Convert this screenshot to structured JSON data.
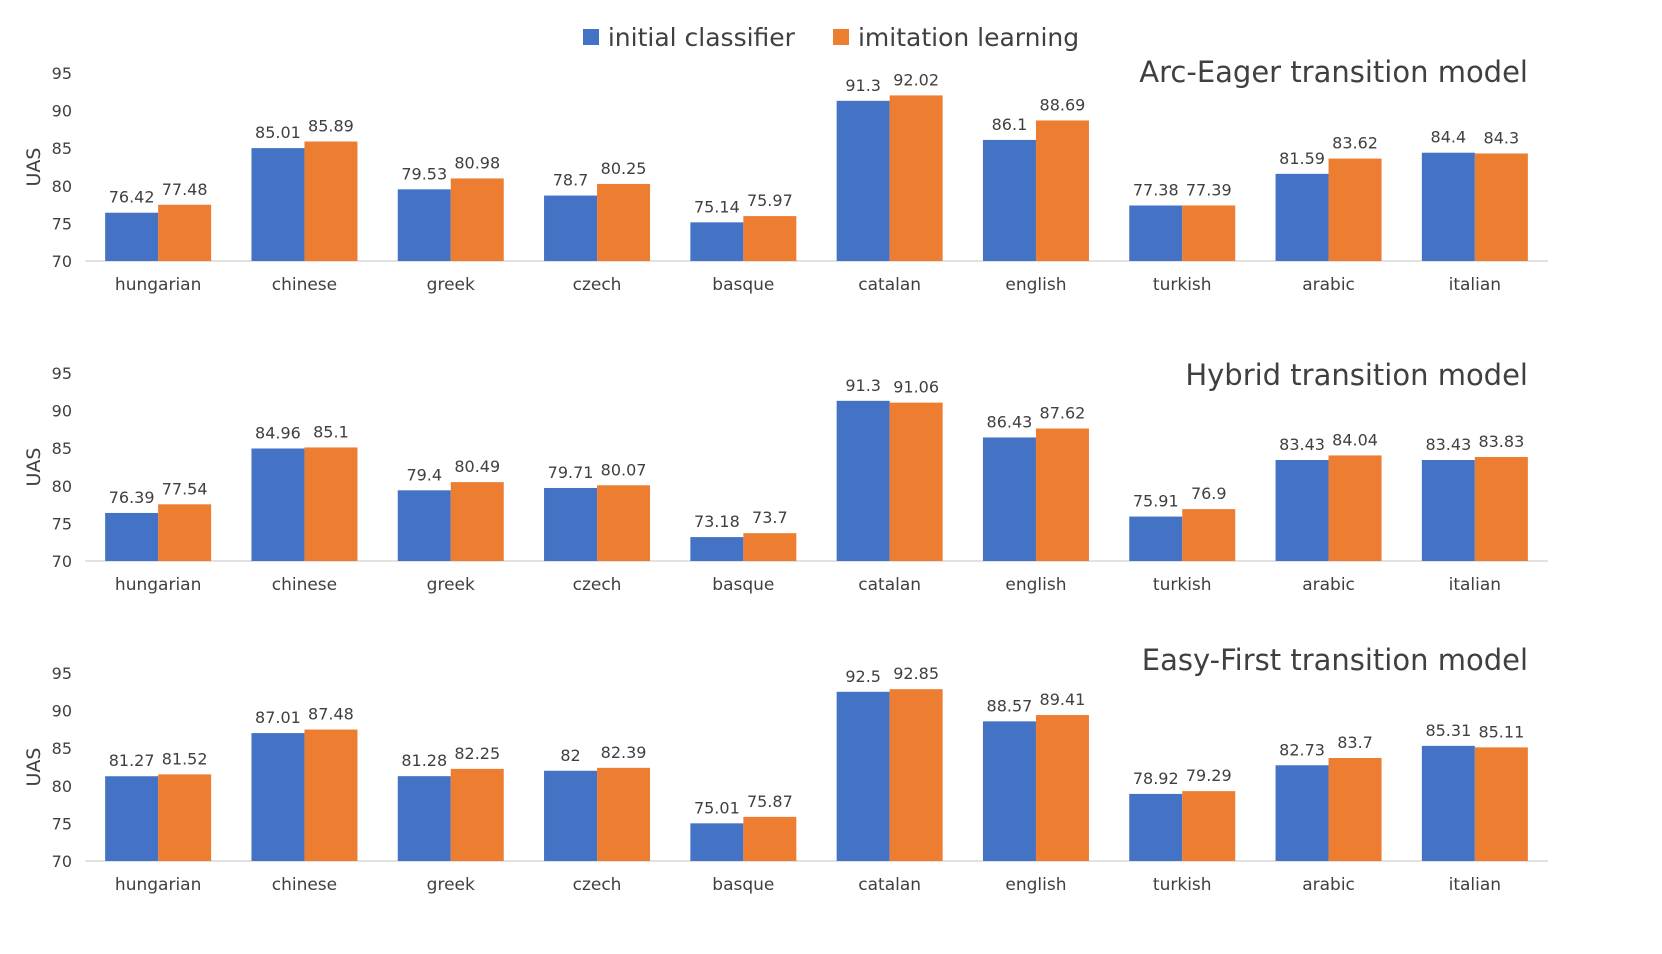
{
  "legend": [
    {
      "label": "initial classifier",
      "color": "#4472C4"
    },
    {
      "label": "imitation learning",
      "color": "#ED7D31"
    }
  ],
  "chart_data": [
    {
      "type": "bar",
      "title": "Arc-Eager transition model",
      "ylabel": "UAS",
      "ylim": [
        70,
        95
      ],
      "yticks": [
        "70",
        "75",
        "80",
        "85",
        "90",
        "95"
      ],
      "categories": [
        "hungarian",
        "chinese",
        "greek",
        "czech",
        "basque",
        "catalan",
        "english",
        "turkish",
        "arabic",
        "italian"
      ],
      "series": [
        {
          "name": "initial classifier",
          "values": [
            76.42,
            85.01,
            79.53,
            78.7,
            75.14,
            91.3,
            86.1,
            77.38,
            81.59,
            84.4
          ],
          "labels": [
            "76.42",
            "85.01",
            "79.53",
            "78.7",
            "75.14",
            "91.3",
            "86.1",
            "77.38",
            "81.59",
            "84.4"
          ]
        },
        {
          "name": "imitation learning",
          "values": [
            77.48,
            85.89,
            80.98,
            80.25,
            75.97,
            92.02,
            88.69,
            77.39,
            83.62,
            84.3
          ],
          "labels": [
            "77.48",
            "85.89",
            "80.98",
            "80.25",
            "75.97",
            "92.02",
            "88.69",
            "77.39",
            "83.62",
            "84.3"
          ]
        }
      ]
    },
    {
      "type": "bar",
      "title": "Hybrid transition model",
      "ylabel": "UAS",
      "ylim": [
        70,
        95
      ],
      "yticks": [
        "70",
        "75",
        "80",
        "85",
        "90",
        "95"
      ],
      "categories": [
        "hungarian",
        "chinese",
        "greek",
        "czech",
        "basque",
        "catalan",
        "english",
        "turkish",
        "arabic",
        "italian"
      ],
      "series": [
        {
          "name": "initial classifier",
          "values": [
            76.39,
            84.96,
            79.4,
            79.71,
            73.18,
            91.3,
            86.43,
            75.91,
            83.43,
            83.43
          ],
          "labels": [
            "76.39",
            "84.96",
            "79.4",
            "79.71",
            "73.18",
            "91.3",
            "86.43",
            "75.91",
            "83.43",
            "83.43"
          ]
        },
        {
          "name": "imitation learning",
          "values": [
            77.54,
            85.1,
            80.49,
            80.07,
            73.7,
            91.06,
            87.62,
            76.9,
            84.04,
            83.83
          ],
          "labels": [
            "77.54",
            "85.1",
            "80.49",
            "80.07",
            "73.7",
            "91.06",
            "87.62",
            "76.9",
            "84.04",
            "83.83"
          ]
        }
      ]
    },
    {
      "type": "bar",
      "title": "Easy-First transition model",
      "ylabel": "UAS",
      "ylim": [
        70,
        95
      ],
      "yticks": [
        "70",
        "75",
        "80",
        "85",
        "90",
        "95"
      ],
      "categories": [
        "hungarian",
        "chinese",
        "greek",
        "czech",
        "basque",
        "catalan",
        "english",
        "turkish",
        "arabic",
        "italian"
      ],
      "series": [
        {
          "name": "initial classifier",
          "values": [
            81.27,
            87.01,
            81.28,
            82,
            75.01,
            92.5,
            88.57,
            78.92,
            82.73,
            85.31
          ],
          "labels": [
            "81.27",
            "87.01",
            "81.28",
            "82",
            "75.01",
            "92.5",
            "88.57",
            "78.92",
            "82.73",
            "85.31"
          ]
        },
        {
          "name": "imitation learning",
          "values": [
            81.52,
            87.48,
            82.25,
            82.39,
            75.87,
            92.85,
            89.41,
            79.29,
            83.7,
            85.11
          ],
          "labels": [
            "81.52",
            "87.48",
            "82.25",
            "82.39",
            "75.87",
            "92.85",
            "89.41",
            "79.29",
            "83.7",
            "85.11"
          ]
        }
      ]
    }
  ]
}
